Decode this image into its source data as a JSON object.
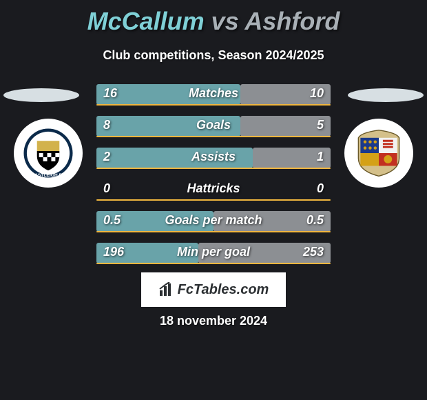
{
  "title": {
    "player1": "McCallum",
    "vs": "vs",
    "player2": "Ashford"
  },
  "subtitle": "Club competitions, Season 2024/2025",
  "rows": [
    {
      "label": "Matches",
      "left": "16",
      "right": "10",
      "lw": 209,
      "rw": 131
    },
    {
      "label": "Goals",
      "left": "8",
      "right": "5",
      "lw": 209,
      "rw": 131
    },
    {
      "label": "Assists",
      "left": "2",
      "right": "1",
      "lw": 227,
      "rw": 113
    },
    {
      "label": "Hattricks",
      "left": "0",
      "right": "0",
      "lw": 0,
      "rw": 0
    },
    {
      "label": "Goals per match",
      "left": "0.5",
      "right": "0.5",
      "lw": 170,
      "rw": 170
    },
    {
      "label": "Min per goal",
      "left": "196",
      "right": "253",
      "lw": 148,
      "rw": 192
    }
  ],
  "colors": {
    "left_bar": "#69a3a9",
    "right_bar": "#8c8f93",
    "underline": "#f0b63f",
    "bg": "#1a1b1f"
  },
  "footer": {
    "brand_pre": "Fc",
    "brand_main": "Tables.com"
  },
  "date": "18 november 2024"
}
